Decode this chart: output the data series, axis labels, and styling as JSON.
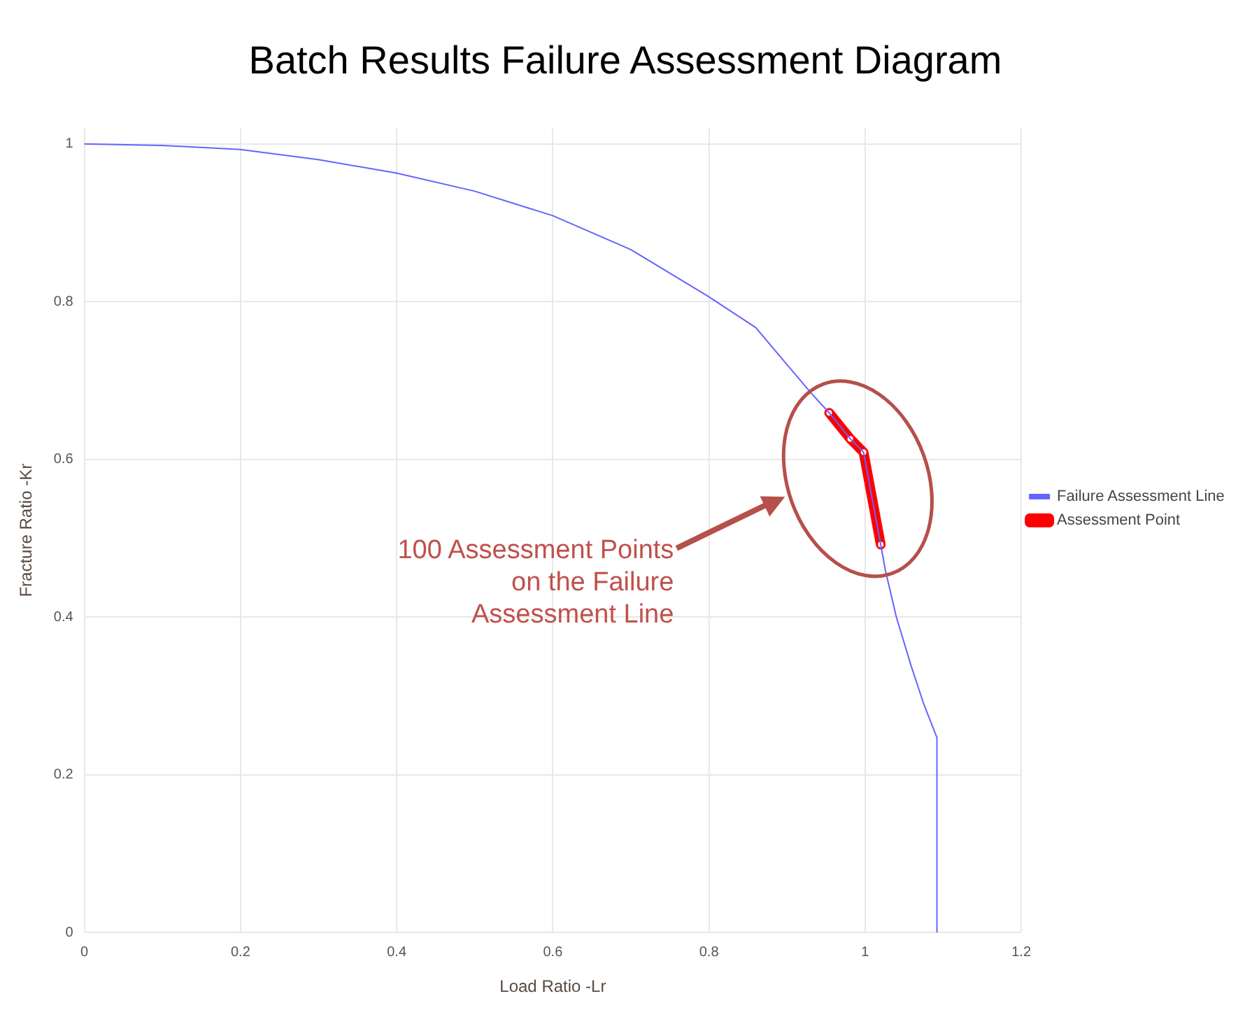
{
  "chart_data": {
    "type": "line",
    "title": "Batch Results Failure Assessment Diagram",
    "xlabel": "Load Ratio -Lr",
    "ylabel": "Fracture Ratio -Kr",
    "xlim": [
      0,
      1.2
    ],
    "xticks": [
      0,
      0.2,
      0.4,
      0.6,
      0.8,
      1,
      1.2
    ],
    "ylim": [
      0,
      1.02
    ],
    "yticks": [
      0,
      0.2,
      0.4,
      0.6,
      0.8,
      1
    ],
    "grid": true,
    "legend": "right",
    "marker": "none",
    "line_style": "solid",
    "series": [
      {
        "name": "Failure Assessment Line",
        "color": "#6464ff",
        "x": [
          0,
          0.1,
          0.2,
          0.3,
          0.4,
          0.5,
          0.6,
          0.7,
          0.8,
          0.86,
          0.9,
          0.93,
          0.954,
          0.981,
          0.998,
          1.02,
          1.026,
          1.04,
          1.059,
          1.075,
          1.092,
          1.092
        ],
        "values": [
          1,
          0.998,
          0.993,
          0.98,
          0.963,
          0.94,
          0.909,
          0.866,
          0.806,
          0.767,
          0.72,
          0.685,
          0.659,
          0.626,
          0.609,
          0.492,
          0.459,
          0.4,
          0.338,
          0.29,
          0.247,
          0
        ]
      },
      {
        "name": "Assessment Point",
        "color": "#ff0000",
        "marker": "circle",
        "x": [
          0.954,
          0.981,
          0.998,
          1.02
        ],
        "values": [
          0.659,
          0.626,
          0.609,
          0.492
        ]
      }
    ],
    "annotations": [
      "100 Assessment Points on the Failure Assessment Line"
    ]
  }
}
